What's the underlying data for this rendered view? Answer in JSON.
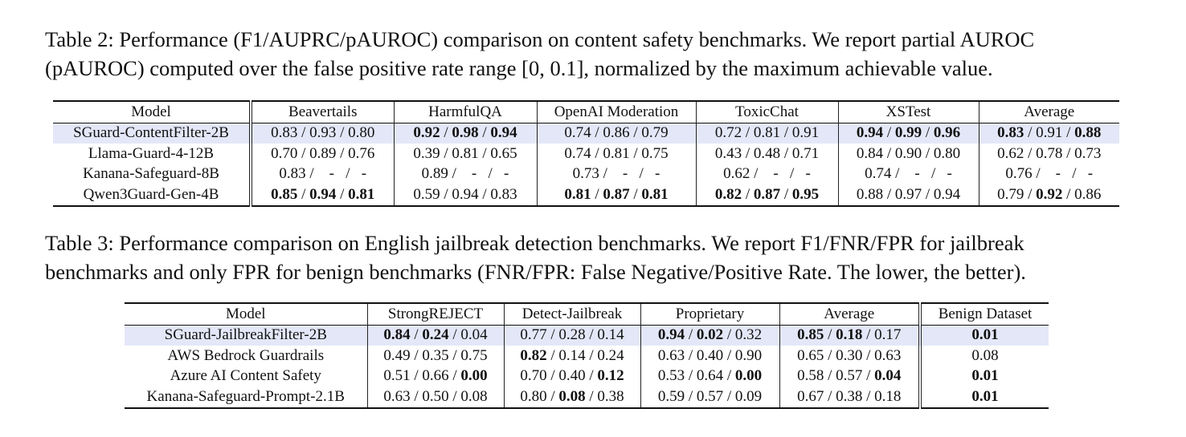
{
  "table2": {
    "caption": [
      "Table 2: Performance (F1/AUPRC/pAUROC) comparison on content safety benchmarks. We report partial AUROC",
      "(pAUROC) computed over the false positive rate range [0, 0.1], normalized by the maximum achievable value."
    ],
    "header": [
      "Model",
      "Beavertails",
      "HarmfulQA",
      "OpenAI Moderation",
      "ToxicChat",
      "XSTest",
      "Average"
    ],
    "rows": [
      [
        "SGuard-ContentFilter-2B",
        "0.83 / 0.93 / 0.80",
        [
          {
            "b": "0.92"
          },
          " / ",
          {
            "b": "0.98"
          },
          " / ",
          {
            "b": "0.94"
          }
        ],
        "0.74 / 0.86 / 0.79",
        "0.72 / 0.81 / 0.91",
        [
          {
            "b": "0.94"
          },
          " / ",
          {
            "b": "0.99"
          },
          " / ",
          {
            "b": "0.96"
          }
        ],
        [
          {
            "b": "0.83"
          },
          " / 0.91 / ",
          {
            "b": "0.88"
          }
        ]
      ],
      [
        "Llama-Guard-4-12B",
        "0.70 / 0.89 / 0.76",
        "0.39 / 0.81 / 0.65",
        "0.74 / 0.81 / 0.75",
        "0.43 / 0.48 / 0.71",
        "0.84 / 0.90 / 0.80",
        "0.62 / 0.78 / 0.73"
      ],
      [
        "Kanana-Safeguard-8B",
        "0.83 /    -   /   -",
        "0.89 /    -   /   -",
        "0.73 /    -   /   -",
        "0.62 /    -   /   -",
        "0.74 /    -   /   -",
        "0.76 /    -   /   -"
      ],
      [
        "Qwen3Guard-Gen-4B",
        [
          {
            "b": "0.85"
          },
          " / ",
          {
            "b": "0.94"
          },
          " / ",
          {
            "b": "0.81"
          }
        ],
        "0.59 / 0.94 / 0.83",
        [
          {
            "b": "0.81"
          },
          " / ",
          {
            "b": "0.87"
          },
          " / ",
          {
            "b": "0.81"
          }
        ],
        [
          {
            "b": "0.82"
          },
          " / ",
          {
            "b": "0.87"
          },
          " / ",
          {
            "b": "0.95"
          }
        ],
        "0.88 / 0.97 / 0.94",
        [
          "0.79 / ",
          {
            "b": "0.92"
          },
          " / 0.86"
        ]
      ]
    ]
  },
  "table3": {
    "caption": [
      "Table 3: Performance comparison on English jailbreak detection benchmarks. We report F1/FNR/FPR for jailbreak",
      "benchmarks and only FPR for benign benchmarks (FNR/FPR: False Negative/Positive Rate. The lower, the better)."
    ],
    "header": [
      "Model",
      "StrongREJECT",
      "Detect-Jailbreak",
      "Proprietary",
      "Average",
      "Benign Dataset"
    ],
    "rows": [
      [
        "SGuard-JailbreakFilter-2B",
        [
          {
            "b": "0.84"
          },
          " / ",
          {
            "b": "0.24"
          },
          " / 0.04"
        ],
        "0.77 / 0.28 / 0.14",
        [
          {
            "b": "0.94"
          },
          " / ",
          {
            "b": "0.02"
          },
          " / 0.32"
        ],
        [
          {
            "b": "0.85"
          },
          " / ",
          {
            "b": "0.18"
          },
          " / 0.17"
        ],
        [
          {
            "b": "0.01"
          }
        ]
      ],
      [
        "AWS Bedrock Guardrails",
        "0.49 / 0.35 / 0.75",
        [
          {
            "b": "0.82"
          },
          " / 0.14 / 0.24"
        ],
        "0.63 / 0.40 / 0.90",
        "0.65 / 0.30 / 0.63",
        "0.08"
      ],
      [
        "Azure AI Content Safety",
        [
          "0.51 / 0.66 / ",
          {
            "b": "0.00"
          }
        ],
        [
          "0.70 / 0.40 / ",
          {
            "b": "0.12"
          }
        ],
        [
          "0.53 / 0.64 / ",
          {
            "b": "0.00"
          }
        ],
        [
          "0.58 / 0.57 / ",
          {
            "b": "0.04"
          }
        ],
        [
          {
            "b": "0.01"
          }
        ]
      ],
      [
        "Kanana-Safeguard-Prompt-2.1B",
        "0.63 / 0.50 / 0.08",
        [
          "0.80 / ",
          {
            "b": "0.08"
          },
          " / 0.38"
        ],
        "0.59 / 0.57 / 0.09",
        "0.67 / 0.38 / 0.18",
        [
          {
            "b": "0.01"
          }
        ]
      ]
    ]
  }
}
